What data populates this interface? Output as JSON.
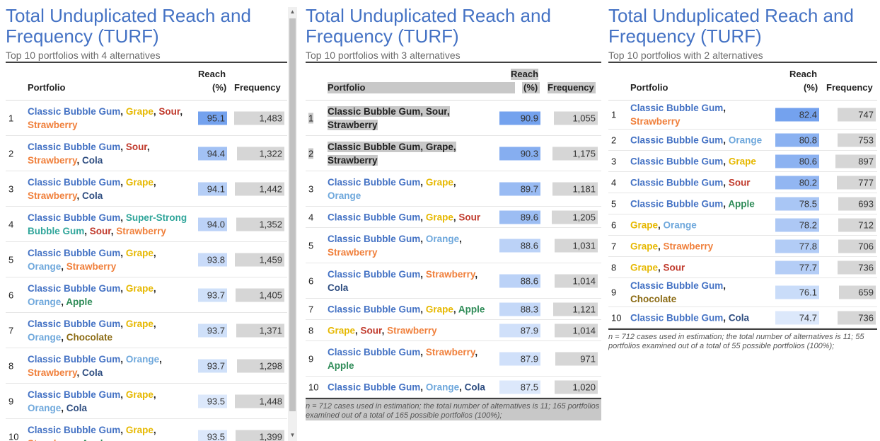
{
  "colors": {
    "Classic Bubble Gum": "#4472c4",
    "Grape": "#e6b800",
    "Sour": "#c0392b",
    "Strawberry": "#f0803c",
    "Cola": "#2e4d80",
    "Orange": "#6fa8dc",
    "Apple": "#2e8b57",
    "Chocolate": "#8b6b14",
    "Super-Strong Bubble Gum": "#2fa59a"
  },
  "panels": [
    {
      "title_line1": "Total Unduplicated Reach and",
      "title_line2": "Frequency (TURF)",
      "subtitle": "Top 10 portfolios with 4 alternatives",
      "header": {
        "portfolio": "Portfolio",
        "reach_line1": "Reach",
        "reach_line2": "(%)",
        "frequency": "Frequency"
      },
      "rows": [
        {
          "rank": "1",
          "lines": [
            [
              {
                "t": "Classic Bubble Gum",
                "c": "Classic Bubble Gum"
              },
              {
                "t": ", "
              },
              {
                "t": "Grape",
                "c": "Grape"
              },
              {
                "t": ", "
              },
              {
                "t": "Sour",
                "c": "Sour"
              },
              {
                "t": ","
              }
            ],
            [
              {
                "t": "Strawberry",
                "c": "Strawberry"
              }
            ]
          ],
          "reach": "95.1",
          "frequency": "1,483"
        },
        {
          "rank": "2",
          "lines": [
            [
              {
                "t": "Classic Bubble Gum",
                "c": "Classic Bubble Gum"
              },
              {
                "t": ", "
              },
              {
                "t": "Sour",
                "c": "Sour"
              },
              {
                "t": ","
              }
            ],
            [
              {
                "t": "Strawberry",
                "c": "Strawberry"
              },
              {
                "t": ", "
              },
              {
                "t": "Cola",
                "c": "Cola"
              }
            ]
          ],
          "reach": "94.4",
          "frequency": "1,322"
        },
        {
          "rank": "3",
          "lines": [
            [
              {
                "t": "Classic Bubble Gum",
                "c": "Classic Bubble Gum"
              },
              {
                "t": ", "
              },
              {
                "t": "Grape",
                "c": "Grape"
              },
              {
                "t": ","
              }
            ],
            [
              {
                "t": "Strawberry",
                "c": "Strawberry"
              },
              {
                "t": ", "
              },
              {
                "t": "Cola",
                "c": "Cola"
              }
            ]
          ],
          "reach": "94.1",
          "frequency": "1,442"
        },
        {
          "rank": "4",
          "lines": [
            [
              {
                "t": "Classic Bubble Gum",
                "c": "Classic Bubble Gum"
              },
              {
                "t": ", "
              },
              {
                "t": "Super-Strong",
                "c": "Super-Strong Bubble Gum"
              }
            ],
            [
              {
                "t": "Bubble Gum",
                "c": "Super-Strong Bubble Gum"
              },
              {
                "t": ", "
              },
              {
                "t": "Sour",
                "c": "Sour"
              },
              {
                "t": ", "
              },
              {
                "t": "Strawberry",
                "c": "Strawberry"
              }
            ]
          ],
          "reach": "94.0",
          "frequency": "1,352"
        },
        {
          "rank": "5",
          "lines": [
            [
              {
                "t": "Classic Bubble Gum",
                "c": "Classic Bubble Gum"
              },
              {
                "t": ", "
              },
              {
                "t": "Grape",
                "c": "Grape"
              },
              {
                "t": ","
              }
            ],
            [
              {
                "t": "Orange",
                "c": "Orange"
              },
              {
                "t": ", "
              },
              {
                "t": "Strawberry",
                "c": "Strawberry"
              }
            ]
          ],
          "reach": "93.8",
          "frequency": "1,459"
        },
        {
          "rank": "6",
          "lines": [
            [
              {
                "t": "Classic Bubble Gum",
                "c": "Classic Bubble Gum"
              },
              {
                "t": ", "
              },
              {
                "t": "Grape",
                "c": "Grape"
              },
              {
                "t": ","
              }
            ],
            [
              {
                "t": "Orange",
                "c": "Orange"
              },
              {
                "t": ", "
              },
              {
                "t": "Apple",
                "c": "Apple"
              }
            ]
          ],
          "reach": "93.7",
          "frequency": "1,405"
        },
        {
          "rank": "7",
          "lines": [
            [
              {
                "t": "Classic Bubble Gum",
                "c": "Classic Bubble Gum"
              },
              {
                "t": ", "
              },
              {
                "t": "Grape",
                "c": "Grape"
              },
              {
                "t": ","
              }
            ],
            [
              {
                "t": "Orange",
                "c": "Orange"
              },
              {
                "t": ", "
              },
              {
                "t": "Chocolate",
                "c": "Chocolate"
              }
            ]
          ],
          "reach": "93.7",
          "frequency": "1,371"
        },
        {
          "rank": "8",
          "lines": [
            [
              {
                "t": "Classic Bubble Gum",
                "c": "Classic Bubble Gum"
              },
              {
                "t": ", "
              },
              {
                "t": "Orange",
                "c": "Orange"
              },
              {
                "t": ","
              }
            ],
            [
              {
                "t": "Strawberry",
                "c": "Strawberry"
              },
              {
                "t": ", "
              },
              {
                "t": "Cola",
                "c": "Cola"
              }
            ]
          ],
          "reach": "93.7",
          "frequency": "1,298"
        },
        {
          "rank": "9",
          "lines": [
            [
              {
                "t": "Classic Bubble Gum",
                "c": "Classic Bubble Gum"
              },
              {
                "t": ", "
              },
              {
                "t": "Grape",
                "c": "Grape"
              },
              {
                "t": ","
              }
            ],
            [
              {
                "t": "Orange",
                "c": "Orange"
              },
              {
                "t": ", "
              },
              {
                "t": "Cola",
                "c": "Cola"
              }
            ]
          ],
          "reach": "93.5",
          "frequency": "1,448"
        },
        {
          "rank": "10",
          "lines": [
            [
              {
                "t": "Classic Bubble Gum",
                "c": "Classic Bubble Gum"
              },
              {
                "t": ", "
              },
              {
                "t": "Grape",
                "c": "Grape"
              },
              {
                "t": ","
              }
            ],
            [
              {
                "t": "Strawberry",
                "c": "Strawberry"
              },
              {
                "t": ", "
              },
              {
                "t": "Apple",
                "c": "Apple"
              }
            ]
          ],
          "reach": "93.5",
          "frequency": "1,399"
        }
      ],
      "footnote": ""
    },
    {
      "title_line1": "Total Unduplicated Reach and",
      "title_line2": "Frequency (TURF)",
      "subtitle": "Top 10 portfolios with 3 alternatives",
      "header": {
        "portfolio": "Portfolio",
        "reach_line1": "Reach",
        "reach_line2": "(%)",
        "frequency": "Frequency"
      },
      "rows": [
        {
          "rank": "1",
          "lines": [
            [
              {
                "t": "Classic Bubble Gum",
                "c": "Classic Bubble Gum"
              },
              {
                "t": ", "
              },
              {
                "t": "Sour",
                "c": "Sour"
              },
              {
                "t": ","
              }
            ],
            [
              {
                "t": "Strawberry",
                "c": "Strawberry"
              }
            ]
          ],
          "reach": "90.9",
          "frequency": "1,055"
        },
        {
          "rank": "2",
          "lines": [
            [
              {
                "t": "Classic Bubble Gum",
                "c": "Classic Bubble Gum"
              },
              {
                "t": ", "
              },
              {
                "t": "Grape",
                "c": "Grape"
              },
              {
                "t": ","
              }
            ],
            [
              {
                "t": "Strawberry",
                "c": "Strawberry"
              }
            ]
          ],
          "reach": "90.3",
          "frequency": "1,175"
        },
        {
          "rank": "3",
          "lines": [
            [
              {
                "t": "Classic Bubble Gum",
                "c": "Classic Bubble Gum"
              },
              {
                "t": ", "
              },
              {
                "t": "Grape",
                "c": "Grape"
              },
              {
                "t": ","
              }
            ],
            [
              {
                "t": "Orange",
                "c": "Orange"
              }
            ]
          ],
          "reach": "89.7",
          "frequency": "1,181"
        },
        {
          "rank": "4",
          "lines": [
            [
              {
                "t": "Classic Bubble Gum",
                "c": "Classic Bubble Gum"
              },
              {
                "t": ", "
              },
              {
                "t": "Grape",
                "c": "Grape"
              },
              {
                "t": ", "
              },
              {
                "t": "Sour",
                "c": "Sour"
              }
            ]
          ],
          "reach": "89.6",
          "frequency": "1,205"
        },
        {
          "rank": "5",
          "lines": [
            [
              {
                "t": "Classic Bubble Gum",
                "c": "Classic Bubble Gum"
              },
              {
                "t": ", "
              },
              {
                "t": "Orange",
                "c": "Orange"
              },
              {
                "t": ","
              }
            ],
            [
              {
                "t": "Strawberry",
                "c": "Strawberry"
              }
            ]
          ],
          "reach": "88.6",
          "frequency": "1,031"
        },
        {
          "rank": "6",
          "lines": [
            [
              {
                "t": "Classic Bubble Gum",
                "c": "Classic Bubble Gum"
              },
              {
                "t": ", "
              },
              {
                "t": "Strawberry",
                "c": "Strawberry"
              },
              {
                "t": ","
              }
            ],
            [
              {
                "t": "Cola",
                "c": "Cola"
              }
            ]
          ],
          "reach": "88.6",
          "frequency": "1,014"
        },
        {
          "rank": "7",
          "lines": [
            [
              {
                "t": "Classic Bubble Gum",
                "c": "Classic Bubble Gum"
              },
              {
                "t": ", "
              },
              {
                "t": "Grape",
                "c": "Grape"
              },
              {
                "t": ", "
              },
              {
                "t": "Apple",
                "c": "Apple"
              }
            ]
          ],
          "reach": "88.3",
          "frequency": "1,121"
        },
        {
          "rank": "8",
          "lines": [
            [
              {
                "t": "Grape",
                "c": "Grape"
              },
              {
                "t": ", "
              },
              {
                "t": "Sour",
                "c": "Sour"
              },
              {
                "t": ", "
              },
              {
                "t": "Strawberry",
                "c": "Strawberry"
              }
            ]
          ],
          "reach": "87.9",
          "frequency": "1,014"
        },
        {
          "rank": "9",
          "lines": [
            [
              {
                "t": "Classic Bubble Gum",
                "c": "Classic Bubble Gum"
              },
              {
                "t": ", "
              },
              {
                "t": "Strawberry",
                "c": "Strawberry"
              },
              {
                "t": ","
              }
            ],
            [
              {
                "t": "Apple",
                "c": "Apple"
              }
            ]
          ],
          "reach": "87.9",
          "frequency": "971"
        },
        {
          "rank": "10",
          "lines": [
            [
              {
                "t": "Classic Bubble Gum",
                "c": "Classic Bubble Gum"
              },
              {
                "t": ", "
              },
              {
                "t": "Orange",
                "c": "Orange"
              },
              {
                "t": ", "
              },
              {
                "t": "Cola",
                "c": "Cola"
              }
            ]
          ],
          "reach": "87.5",
          "frequency": "1,020"
        }
      ],
      "footnote": "n = 712 cases used in estimation; the total number of alternatives is 11; 165 portfolios examined out of a total of 165 possible portfolios (100%);"
    },
    {
      "title_line1": "Total Unduplicated Reach and",
      "title_line2": "Frequency (TURF)",
      "subtitle": "Top 10 portfolios with 2 alternatives",
      "header": {
        "portfolio": "Portfolio",
        "reach_line1": "Reach",
        "reach_line2": "(%)",
        "frequency": "Frequency"
      },
      "rows": [
        {
          "rank": "1",
          "lines": [
            [
              {
                "t": "Classic Bubble Gum",
                "c": "Classic Bubble Gum"
              },
              {
                "t": ","
              }
            ],
            [
              {
                "t": "Strawberry",
                "c": "Strawberry"
              }
            ]
          ],
          "reach": "82.4",
          "frequency": "747"
        },
        {
          "rank": "2",
          "lines": [
            [
              {
                "t": "Classic Bubble Gum",
                "c": "Classic Bubble Gum"
              },
              {
                "t": ", "
              },
              {
                "t": "Orange",
                "c": "Orange"
              }
            ]
          ],
          "reach": "80.8",
          "frequency": "753"
        },
        {
          "rank": "3",
          "lines": [
            [
              {
                "t": "Classic Bubble Gum",
                "c": "Classic Bubble Gum"
              },
              {
                "t": ", "
              },
              {
                "t": "Grape",
                "c": "Grape"
              }
            ]
          ],
          "reach": "80.6",
          "frequency": "897"
        },
        {
          "rank": "4",
          "lines": [
            [
              {
                "t": "Classic Bubble Gum",
                "c": "Classic Bubble Gum"
              },
              {
                "t": ", "
              },
              {
                "t": "Sour",
                "c": "Sour"
              }
            ]
          ],
          "reach": "80.2",
          "frequency": "777"
        },
        {
          "rank": "5",
          "lines": [
            [
              {
                "t": "Classic Bubble Gum",
                "c": "Classic Bubble Gum"
              },
              {
                "t": ", "
              },
              {
                "t": "Apple",
                "c": "Apple"
              }
            ]
          ],
          "reach": "78.5",
          "frequency": "693"
        },
        {
          "rank": "6",
          "lines": [
            [
              {
                "t": "Grape",
                "c": "Grape"
              },
              {
                "t": ", "
              },
              {
                "t": "Orange",
                "c": "Orange"
              }
            ]
          ],
          "reach": "78.2",
          "frequency": "712"
        },
        {
          "rank": "7",
          "lines": [
            [
              {
                "t": "Grape",
                "c": "Grape"
              },
              {
                "t": ", "
              },
              {
                "t": "Strawberry",
                "c": "Strawberry"
              }
            ]
          ],
          "reach": "77.8",
          "frequency": "706"
        },
        {
          "rank": "8",
          "lines": [
            [
              {
                "t": "Grape",
                "c": "Grape"
              },
              {
                "t": ", "
              },
              {
                "t": "Sour",
                "c": "Sour"
              }
            ]
          ],
          "reach": "77.7",
          "frequency": "736"
        },
        {
          "rank": "9",
          "lines": [
            [
              {
                "t": "Classic Bubble Gum",
                "c": "Classic Bubble Gum"
              },
              {
                "t": ","
              }
            ],
            [
              {
                "t": "Chocolate",
                "c": "Chocolate"
              }
            ]
          ],
          "reach": "76.1",
          "frequency": "659"
        },
        {
          "rank": "10",
          "lines": [
            [
              {
                "t": "Classic Bubble Gum",
                "c": "Classic Bubble Gum"
              },
              {
                "t": ", "
              },
              {
                "t": "Cola",
                "c": "Cola"
              }
            ]
          ],
          "reach": "74.7",
          "frequency": "736"
        }
      ],
      "footnote": "n = 712 cases used in estimation; the total number of alternatives is 11; 55 portfolios examined out of a total of 55 possible portfolios (100%);"
    }
  ]
}
